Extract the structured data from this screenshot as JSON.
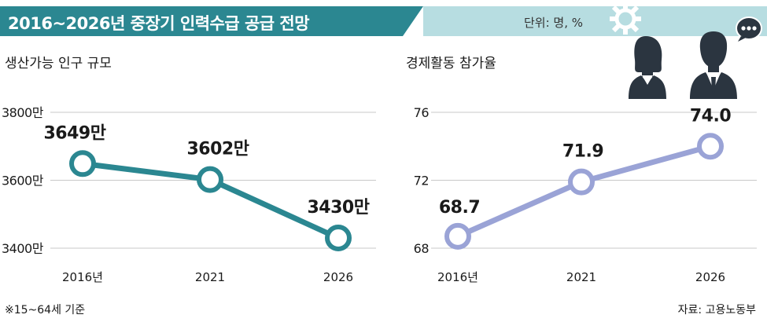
{
  "header": {
    "title": "2016~2026년 중장기 인력수급 공급 전망",
    "unit": "단위: 명, %",
    "colors": {
      "title_bg": "#2b8791",
      "band": "#b7dde1"
    },
    "icons": [
      "gear-icon",
      "speech-bubble-icon",
      "people-icon"
    ]
  },
  "chart_data": [
    {
      "type": "line",
      "title": "생산가능 인구 규모",
      "categories": [
        "2016년",
        "2021",
        "2026"
      ],
      "values": [
        3649,
        3602,
        3430
      ],
      "data_labels": [
        "3649만",
        "3602만",
        "3430만"
      ],
      "yticks": [
        3400,
        3600,
        3800
      ],
      "ytick_labels": [
        "3400만",
        "3600만",
        "3800만"
      ],
      "ylim": [
        3400,
        3800
      ],
      "grid": true,
      "color": "#2b8791"
    },
    {
      "type": "line",
      "title": "경제활동 참가율",
      "categories": [
        "2016년",
        "2021",
        "2026"
      ],
      "values": [
        68.7,
        71.9,
        74.0
      ],
      "data_labels": [
        "68.7",
        "71.9",
        "74.0"
      ],
      "yticks": [
        68,
        72,
        76
      ],
      "ytick_labels": [
        "68",
        "72",
        "76"
      ],
      "ylim": [
        68,
        76
      ],
      "grid": true,
      "color": "#9aa3d6"
    }
  ],
  "footer": {
    "note": "※15~64세 기준",
    "source": "자료: 고용노동부"
  }
}
